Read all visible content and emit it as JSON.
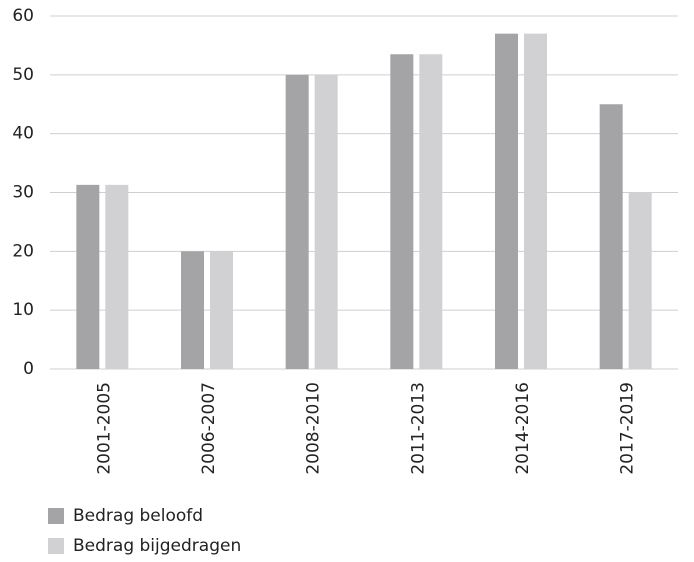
{
  "chart_data": {
    "type": "bar",
    "categories": [
      "2001-2005",
      "2006-2007",
      "2008-2010",
      "2011-2013",
      "2014-2016",
      "2017-2019"
    ],
    "series": [
      {
        "name": "Bedrag beloofd",
        "color": "#a4a4a7",
        "values": [
          31.3,
          20,
          50,
          53.5,
          57,
          45
        ]
      },
      {
        "name": "Bedrag bijgedragen",
        "color": "#d1d1d3",
        "values": [
          31.3,
          20,
          50,
          53.5,
          57,
          30
        ]
      }
    ],
    "ylim": [
      0,
      60
    ],
    "yticks": [
      0,
      10,
      20,
      30,
      40,
      50,
      60
    ],
    "grid": true
  }
}
